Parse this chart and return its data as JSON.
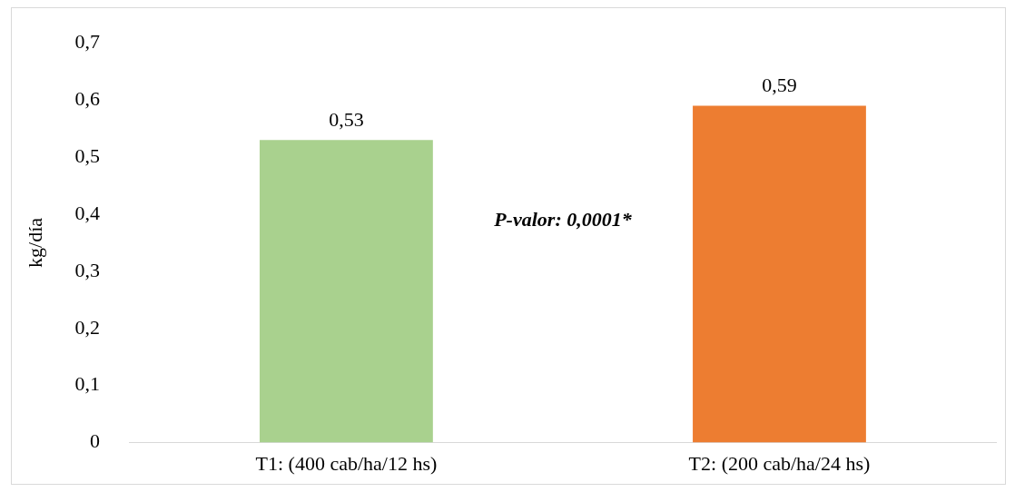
{
  "chart_data": {
    "type": "bar",
    "ylabel": "kg/día",
    "categories": [
      "T1: (400 cab/ha/12 hs)",
      "T2: (200 cab/ha/24 hs)"
    ],
    "values": [
      0.53,
      0.59
    ],
    "colors": [
      "#a9d18e",
      "#ed7d31"
    ],
    "value_labels": [
      "0,53",
      "0,59"
    ],
    "ylim": [
      0,
      0.7
    ],
    "yticks": [
      {
        "value": 0,
        "label": "0"
      },
      {
        "value": 0.1,
        "label": "0,1"
      },
      {
        "value": 0.2,
        "label": "0,2"
      },
      {
        "value": 0.3,
        "label": "0,3"
      },
      {
        "value": 0.4,
        "label": "0,4"
      },
      {
        "value": 0.5,
        "label": "0,5"
      },
      {
        "value": 0.6,
        "label": "0,6"
      },
      {
        "value": 0.7,
        "label": "0,7"
      }
    ],
    "grid": false,
    "legend": false,
    "annotations": [
      "P-valor: 0,0001*"
    ]
  }
}
